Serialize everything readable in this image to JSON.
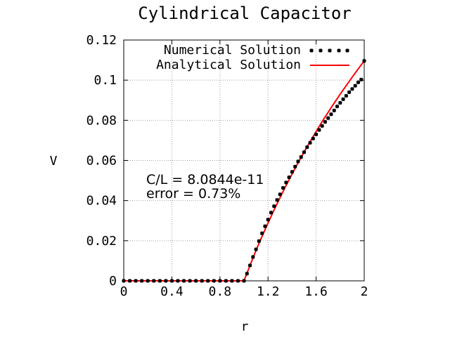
{
  "chart_data": {
    "type": "line",
    "title": "Cylindrical Capacitor",
    "xlabel": "r",
    "ylabel": "V",
    "xlim": [
      0,
      2
    ],
    "ylim": [
      0,
      0.12
    ],
    "grid": true,
    "legend_placement": "top-right",
    "x_ticks": [
      "0",
      "0.4",
      "0.8",
      "1.2",
      "1.6",
      "2"
    ],
    "y_ticks": [
      "0",
      "0.02",
      "0.04",
      "0.06",
      "0.08",
      "0.1",
      "0.12"
    ],
    "annotations": [
      "C/L = 8.0844e-11",
      "error = 0.73%"
    ],
    "series": [
      {
        "name": "Numerical Solution",
        "style": "points",
        "color": "#000000",
        "x": [
          0,
          0.05,
          0.1,
          0.15,
          0.2,
          0.25,
          0.3,
          0.35,
          0.4,
          0.45,
          0.5,
          0.55,
          0.6,
          0.65,
          0.7,
          0.75,
          0.8,
          0.85,
          0.9,
          0.95,
          1.0,
          1.025,
          1.05,
          1.075,
          1.1,
          1.125,
          1.15,
          1.175,
          1.2,
          1.225,
          1.25,
          1.275,
          1.3,
          1.325,
          1.35,
          1.375,
          1.4,
          1.425,
          1.45,
          1.475,
          1.5,
          1.525,
          1.55,
          1.575,
          1.6,
          1.625,
          1.65,
          1.675,
          1.7,
          1.725,
          1.75,
          1.775,
          1.8,
          1.825,
          1.85,
          1.875,
          1.9,
          1.925,
          1.95,
          1.975,
          2.0
        ],
        "y": [
          0,
          0,
          0,
          0,
          0,
          0,
          0,
          0,
          0,
          0,
          0,
          0,
          0,
          0,
          0,
          0,
          0,
          0,
          0,
          0,
          0,
          0.0036,
          0.0077,
          0.0119,
          0.0157,
          0.0198,
          0.0237,
          0.0272,
          0.0305,
          0.034,
          0.0372,
          0.0403,
          0.0431,
          0.0463,
          0.049,
          0.0516,
          0.0543,
          0.0569,
          0.0595,
          0.0617,
          0.0641,
          0.0666,
          0.0688,
          0.0709,
          0.073,
          0.0752,
          0.0772,
          0.0792,
          0.0811,
          0.083,
          0.0849,
          0.0869,
          0.0887,
          0.0905,
          0.0922,
          0.094,
          0.0956,
          0.0972,
          0.0989,
          0.1003,
          0.1096
        ]
      },
      {
        "name": "Analytical Solution",
        "style": "line",
        "color": "#ff0000",
        "x": [
          0,
          1.0,
          1.05,
          1.1,
          1.15,
          1.2,
          1.25,
          1.3,
          1.35,
          1.4,
          1.45,
          1.5,
          1.55,
          1.6,
          1.65,
          1.7,
          1.75,
          1.8,
          1.85,
          1.9,
          1.95,
          2.0
        ],
        "y": [
          0,
          0,
          0.0077,
          0.0151,
          0.0221,
          0.0288,
          0.0353,
          0.0415,
          0.0475,
          0.0532,
          0.0588,
          0.0642,
          0.0694,
          0.0744,
          0.0793,
          0.084,
          0.0886,
          0.093,
          0.0973,
          0.1015,
          0.1056,
          0.1096
        ]
      }
    ]
  }
}
